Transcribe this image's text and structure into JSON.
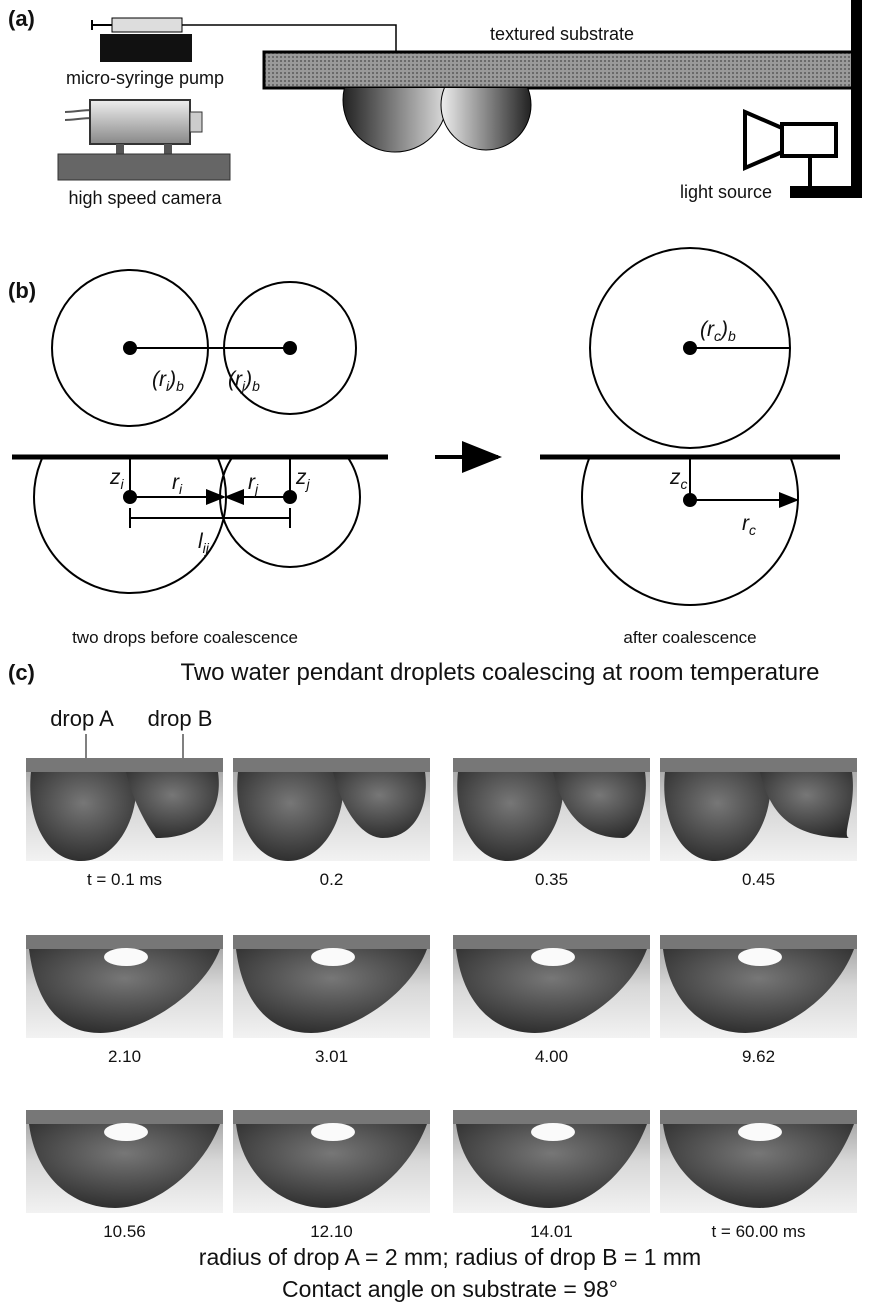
{
  "panel_a": {
    "label": "(a)",
    "pump": "micro-syringe pump",
    "camera": "high speed camera",
    "substrate": "textured substrate",
    "light": "light source"
  },
  "panel_b": {
    "label": "(b)",
    "symbols": {
      "ri_b": [
        {
          "t": "(r"
        },
        {
          "sub": "i"
        },
        {
          "t": ")"
        },
        {
          "sub": "b"
        }
      ],
      "rj_b": [
        {
          "t": "(r"
        },
        {
          "sub": "j"
        },
        {
          "t": ")"
        },
        {
          "sub": "b"
        }
      ],
      "zi": [
        {
          "t": "z"
        },
        {
          "sub": "i"
        }
      ],
      "ri": [
        {
          "t": "r"
        },
        {
          "sub": "i"
        }
      ],
      "rj": [
        {
          "t": "r"
        },
        {
          "sub": "j"
        }
      ],
      "zj": [
        {
          "t": "z"
        },
        {
          "sub": "j"
        }
      ],
      "lij": [
        {
          "t": "l"
        },
        {
          "sub": "ij"
        }
      ],
      "rc_b": [
        {
          "t": "(r"
        },
        {
          "sub": "c"
        },
        {
          "t": ")"
        },
        {
          "sub": "b"
        }
      ],
      "zc": [
        {
          "t": "z"
        },
        {
          "sub": "c"
        }
      ],
      "rc": [
        {
          "t": "r"
        },
        {
          "sub": "c"
        }
      ]
    },
    "before": "two drops before coalescence",
    "after": "after coalescence"
  },
  "panel_c": {
    "label": "(c)",
    "title": "Two water pendant droplets coalescing at room temperature",
    "drop_a": "drop A",
    "drop_b": "drop B",
    "frames": [
      "t = 0.1 ms",
      "0.2",
      "0.35",
      "0.45",
      "2.10",
      "3.01",
      "4.00",
      "9.62",
      "10.56",
      "12.10",
      "14.01",
      "t = 60.00 ms"
    ],
    "notes": [
      "radius of drop A = 2 mm; radius of drop B = 1 mm",
      "Contact angle on substrate = 98°"
    ]
  }
}
